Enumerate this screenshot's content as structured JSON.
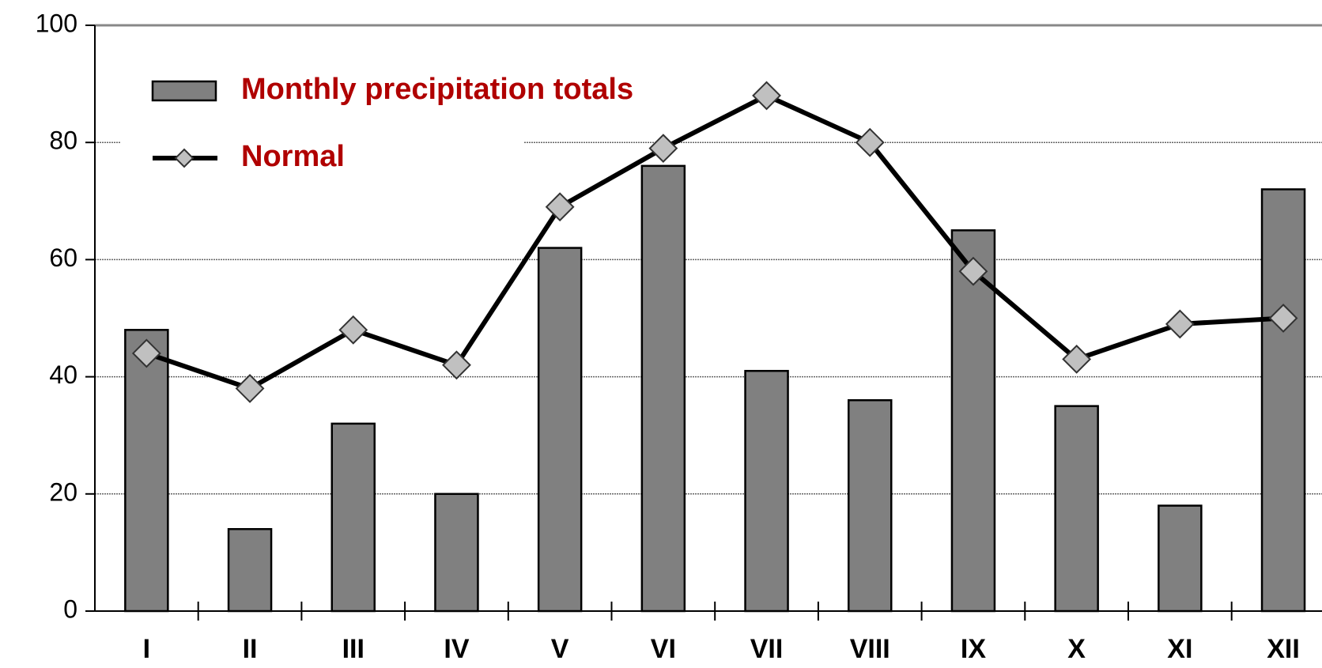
{
  "chart_data": {
    "type": "bar",
    "categories": [
      "I",
      "II",
      "III",
      "IV",
      "V",
      "VI",
      "VII",
      "VIII",
      "IX",
      "X",
      "XI",
      "XII"
    ],
    "series": [
      {
        "name": "Monthly precipitation totals",
        "type": "bar",
        "color": "#808080",
        "values": [
          48,
          14,
          32,
          20,
          62,
          76,
          41,
          36,
          65,
          35,
          18,
          72
        ]
      },
      {
        "name": "Normal",
        "type": "line",
        "color": "#000000",
        "marker_color": "#c0c0c0",
        "values": [
          44,
          38,
          48,
          42,
          69,
          79,
          88,
          80,
          58,
          43,
          49,
          50
        ]
      }
    ],
    "ylim": [
      0,
      100
    ],
    "yticks": [
      0,
      20,
      40,
      60,
      80,
      100
    ],
    "grid": true,
    "legend": "upper left"
  }
}
